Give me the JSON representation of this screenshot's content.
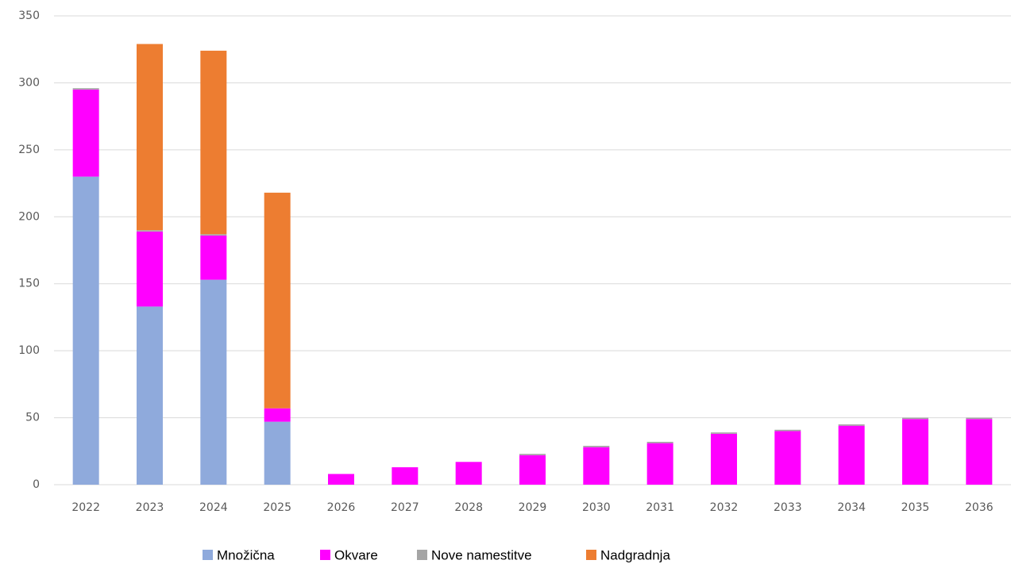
{
  "chart_data": {
    "type": "stacked_bar",
    "categories": [
      "2022",
      "2023",
      "2024",
      "2025",
      "2026",
      "2027",
      "2028",
      "2029",
      "2030",
      "2031",
      "2032",
      "2033",
      "2034",
      "2035",
      "2036"
    ],
    "series": [
      {
        "name": "Množična",
        "color": "#8faadc",
        "values": [
          230,
          133,
          153,
          47,
          0,
          0,
          0,
          0,
          0,
          0,
          0,
          0,
          0,
          0,
          0
        ]
      },
      {
        "name": "Okvare",
        "color": "#ff00ff",
        "values": [
          65,
          56,
          33,
          10,
          8,
          13,
          17,
          22,
          28,
          31,
          38,
          40,
          44,
          49,
          49
        ]
      },
      {
        "name": "Nove namestitve",
        "color": "#a5a5a5",
        "values": [
          1,
          1,
          1,
          0,
          0,
          0,
          0,
          1,
          1,
          1,
          1,
          1,
          1,
          1,
          1
        ]
      },
      {
        "name": "Nadgradnja",
        "color": "#ed7d31",
        "values": [
          0,
          139,
          137,
          161,
          0,
          0,
          0,
          0,
          0,
          0,
          0,
          0,
          0,
          0,
          0
        ]
      }
    ],
    "ylim": [
      0,
      350
    ],
    "yticks": [
      0,
      50,
      100,
      150,
      200,
      250,
      300,
      350
    ],
    "grid": true
  }
}
